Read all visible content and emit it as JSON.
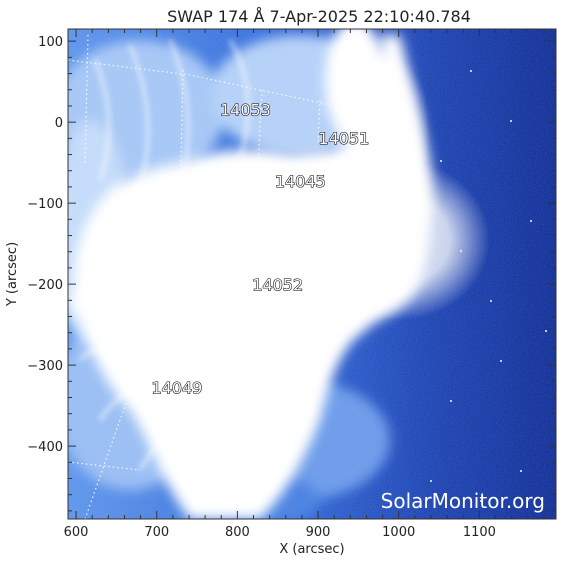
{
  "title": "SWAP 174 Å  7-Apr-2025 22:10:40.784",
  "watermark": "SolarMonitor.org",
  "x_axis": {
    "label": "X (arcsec)",
    "range": [
      590,
      1195
    ],
    "ticks": [
      600,
      700,
      800,
      900,
      1000,
      1100
    ]
  },
  "y_axis": {
    "label": "Y (arcsec)",
    "range": [
      -490,
      115
    ],
    "ticks": [
      100,
      0,
      -100,
      -200,
      -300,
      -400
    ]
  },
  "regions": [
    {
      "number": "14053",
      "x": 810,
      "y": 8
    },
    {
      "number": "14051",
      "x": 932,
      "y": -27
    },
    {
      "number": "14045",
      "x": 878,
      "y": -80
    },
    {
      "number": "14052",
      "x": 850,
      "y": -208
    },
    {
      "number": "14049",
      "x": 725,
      "y": -335
    }
  ],
  "colors": {
    "disk_dark": "#0a2a9a",
    "disk_mid": "#2f6fe0",
    "corona_light": "#9fc4f5",
    "saturated": "#ffffff",
    "axis": "#333333"
  }
}
